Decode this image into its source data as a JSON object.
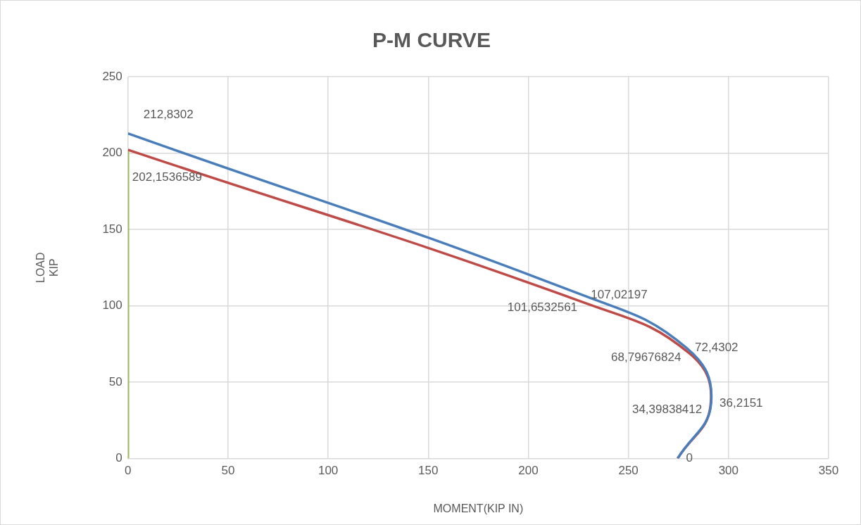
{
  "chart_data": {
    "type": "line",
    "title": "P-M CURVE",
    "xlabel": "MOMENT(KIP IN)",
    "ylabel": "LOAD\nKIP",
    "xlim": [
      0,
      350
    ],
    "xticks": [
      0,
      50,
      100,
      150,
      200,
      250,
      300,
      350
    ],
    "ylim": [
      0,
      250
    ],
    "yticks": [
      0,
      50,
      100,
      150,
      200,
      250
    ],
    "grid": true,
    "legend": false,
    "marker": "none",
    "line_style": "solid",
    "series": [
      {
        "color": "#4a7ebb",
        "x": [
          0,
          227,
          279,
          291.3,
          274.6
        ],
        "values": [
          212.8302,
          107.02197,
          72.4302,
          36.2151,
          0
        ],
        "value_labels": [
          "212,8302",
          "107,02197",
          "72,4302",
          "36,2151",
          "0"
        ]
      },
      {
        "color": "#be4b48",
        "x": [
          0,
          228.7,
          280.5,
          291,
          274.6
        ],
        "values": [
          202.1536589,
          101.6532561,
          68.79676824,
          34.39838412,
          0
        ],
        "value_labels": [
          "202,1536589",
          "101,6532561",
          "68,79676824",
          "34,39838412",
          null
        ]
      },
      {
        "color": "#9bbb59",
        "x": [
          0,
          0
        ],
        "values": [
          0,
          202
        ]
      }
    ]
  }
}
